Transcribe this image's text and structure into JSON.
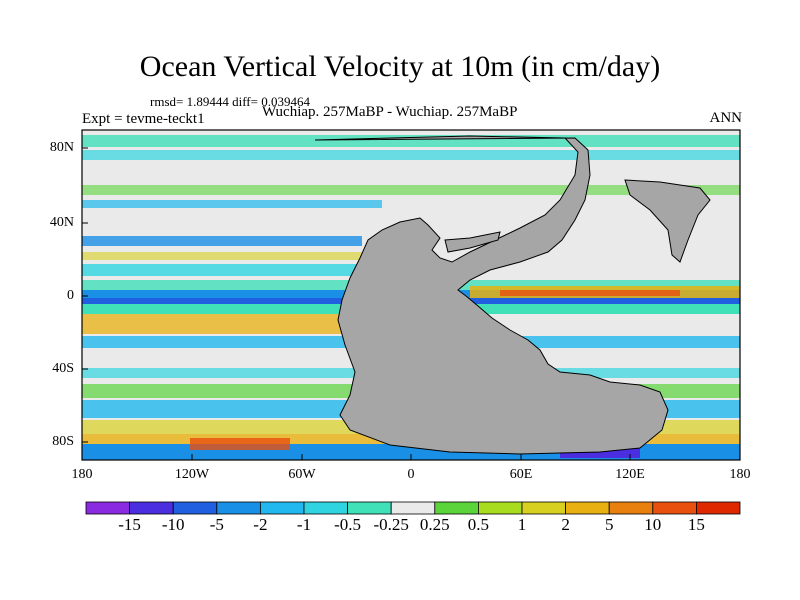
{
  "figure": {
    "title": "Ocean Vertical Velocity at 10m (in cm/day)",
    "stats": "rmsd= 1.89444 diff= 0.039464",
    "experiment": "Expt = tevme-teckt1",
    "subtitle": "Wuchiap. 257MaBP - Wuchiap. 257MaBP",
    "season": "ANN"
  },
  "axes": {
    "lat_ticks": [
      "80N",
      "40N",
      "0",
      "40S",
      "80S"
    ],
    "lon_ticks": [
      "180",
      "120W",
      "60W",
      "0",
      "60E",
      "120E",
      "180"
    ]
  },
  "colorbar": {
    "levels": [
      "-15",
      "-10",
      "-5",
      "-2",
      "-1",
      "-0.5",
      "-0.25",
      "0.25",
      "0.5",
      "1",
      "2",
      "5",
      "10",
      "15"
    ],
    "colors": [
      "#8a2be2",
      "#4b2ee0",
      "#2060e0",
      "#1a8fe6",
      "#20b8ee",
      "#30d4e0",
      "#40e0b8",
      "#eaeaea",
      "#5ad43a",
      "#a8dc1e",
      "#d8d020",
      "#e8b010",
      "#e88010",
      "#e85010",
      "#e02800"
    ]
  },
  "colors": {
    "land": "#a6a6a6",
    "background": "#ffffff"
  }
}
